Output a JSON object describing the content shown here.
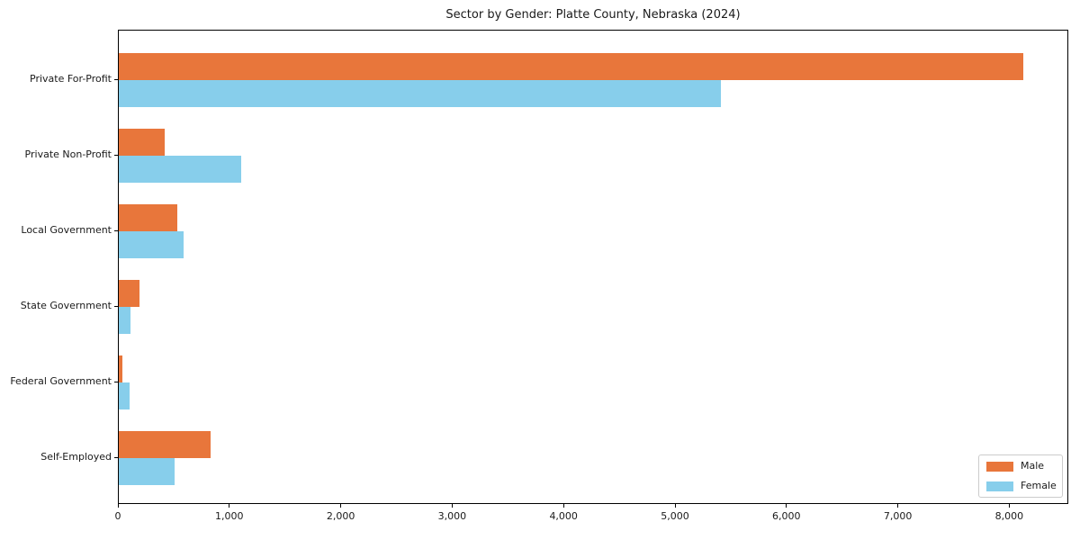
{
  "chart_data": {
    "type": "bar",
    "orientation": "horizontal",
    "title": "Sector by Gender: Platte County, Nebraska (2024)",
    "xlabel": "",
    "ylabel": "",
    "categories": [
      "Private For-Profit",
      "Private Non-Profit",
      "Local Government",
      "State Government",
      "Federal Government",
      "Self-Employed"
    ],
    "series": [
      {
        "name": "Male",
        "color": "#e8763b",
        "values": [
          8115,
          415,
          525,
          185,
          32,
          826
        ]
      },
      {
        "name": "Female",
        "color": "#87ceeb",
        "values": [
          5400,
          1100,
          580,
          107,
          99,
          498
        ]
      }
    ],
    "xlim": [
      0,
      8530
    ],
    "x_tick_values": [
      0,
      1000,
      2000,
      3000,
      4000,
      5000,
      6000,
      7000,
      8000
    ],
    "x_tick_labels": [
      "0",
      "1,000",
      "2,000",
      "3,000",
      "4,000",
      "5,000",
      "6,000",
      "7,000",
      "8,000"
    ],
    "grid": false,
    "legend_position": "lower right"
  },
  "legend": {
    "items": [
      {
        "label": "Male",
        "color": "#e8763b"
      },
      {
        "label": "Female",
        "color": "#87ceeb"
      }
    ]
  }
}
